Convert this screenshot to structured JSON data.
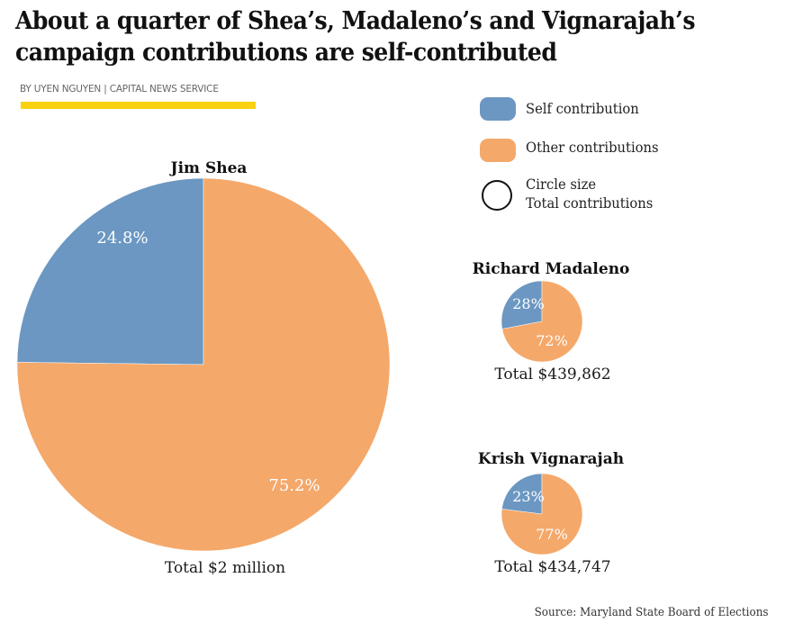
{
  "header": {
    "title": "About a quarter of Shea’s, Madaleno’s and Vignarajah’s campaign contributions are self-contributed",
    "byline": "BY UYEN NGUYEN | CAPITAL NEWS SERVICE"
  },
  "colors": {
    "self": "#6b97c2",
    "other": "#f4a86a",
    "accent_underline": "#f9d10f"
  },
  "legend": {
    "self_label": "Self contribution",
    "other_label": "Other contributions",
    "size_label_line1": "Circle size",
    "size_label_line2": "Total contributions"
  },
  "source": "Source: Maryland State Board of Elections",
  "chart_data": {
    "type": "pie",
    "title": "About a quarter of Shea’s, Madaleno’s and Vignarajah’s campaign contributions are self-contributed",
    "legend": [
      "Self contribution",
      "Other contributions"
    ],
    "size_encoding": "Circle size = Total contributions",
    "pies": [
      {
        "name": "Jim Shea",
        "total_label": "Total $2 million",
        "total": 2000000,
        "slices": [
          {
            "name": "Self contribution",
            "value": 24.8,
            "label": "24.8%"
          },
          {
            "name": "Other contributions",
            "value": 75.2,
            "label": "75.2%"
          }
        ]
      },
      {
        "name": "Richard Madaleno",
        "total_label": "Total $439,862",
        "total": 439862,
        "slices": [
          {
            "name": "Self contribution",
            "value": 28,
            "label": "28%"
          },
          {
            "name": "Other contributions",
            "value": 72,
            "label": "72%"
          }
        ]
      },
      {
        "name": "Krish Vignarajah",
        "total_label": "Total $434,747",
        "total": 434747,
        "slices": [
          {
            "name": "Self contribution",
            "value": 23,
            "label": "23%"
          },
          {
            "name": "Other contributions",
            "value": 77,
            "label": "77%"
          }
        ]
      }
    ]
  }
}
